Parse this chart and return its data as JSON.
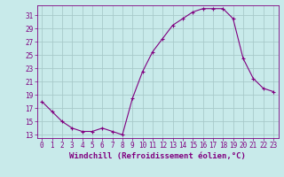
{
  "x": [
    0,
    1,
    2,
    3,
    4,
    5,
    6,
    7,
    8,
    9,
    10,
    11,
    12,
    13,
    14,
    15,
    16,
    17,
    18,
    19,
    20,
    21,
    22,
    23
  ],
  "y": [
    18.0,
    16.5,
    15.0,
    14.0,
    13.5,
    13.5,
    14.0,
    13.5,
    13.0,
    18.5,
    22.5,
    25.5,
    27.5,
    29.5,
    30.5,
    31.5,
    32.0,
    32.0,
    32.0,
    30.5,
    24.5,
    21.5,
    20.0,
    19.5
  ],
  "line_color": "#800080",
  "marker": "+",
  "bg_color": "#c8eaea",
  "grid_color": "#a8caca",
  "axis_color": "#800080",
  "xlabel": "Windchill (Refroidissement éolien,°C)",
  "xlabel_fontsize": 6.5,
  "tick_fontsize": 5.5,
  "yticks": [
    13,
    15,
    17,
    19,
    21,
    23,
    25,
    27,
    29,
    31
  ],
  "xticks": [
    0,
    1,
    2,
    3,
    4,
    5,
    6,
    7,
    8,
    9,
    10,
    11,
    12,
    13,
    14,
    15,
    16,
    17,
    18,
    19,
    20,
    21,
    22,
    23
  ],
  "ylim": [
    12.5,
    32.5
  ],
  "xlim": [
    -0.5,
    23.5
  ]
}
